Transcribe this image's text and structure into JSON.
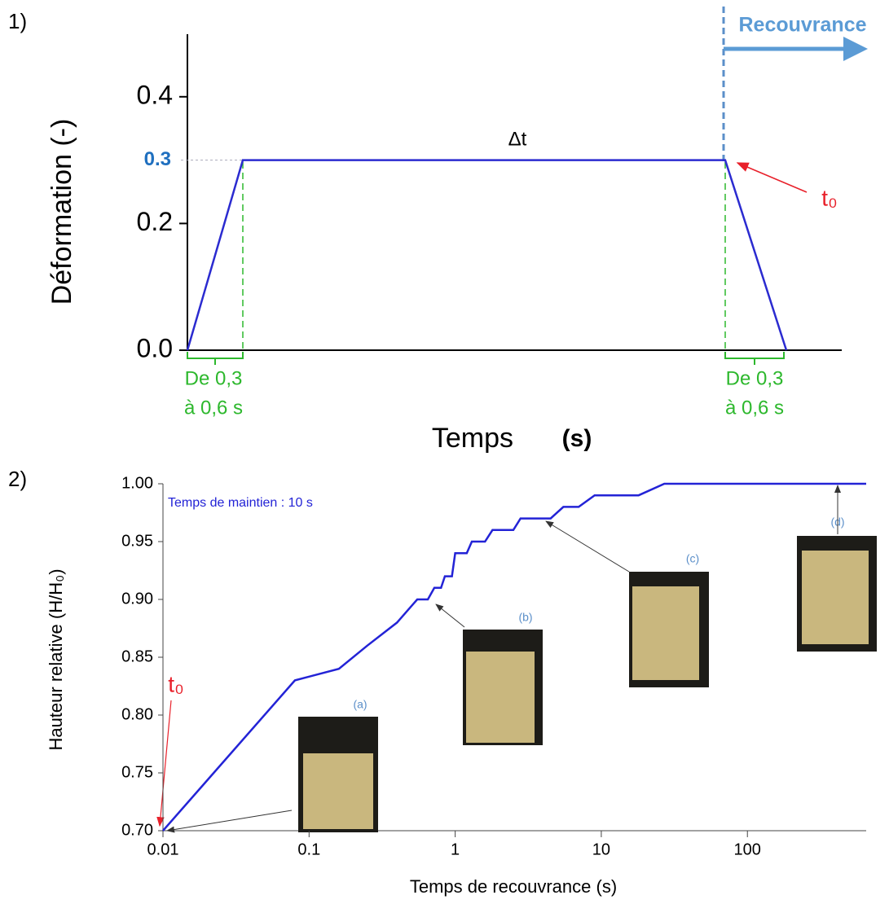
{
  "chart_data": [
    {
      "type": "line",
      "panel_label": "1)",
      "y_label": "Déformation (-)",
      "x_label": "Temps",
      "x_label_unit": "(s)",
      "categories": [
        null,
        null,
        null,
        null
      ],
      "values": [
        0,
        0.3,
        0.3,
        0
      ],
      "color": "#2b2bd0",
      "ylim": [
        0,
        0.5
      ],
      "yticks": [
        {
          "value": 0,
          "label": "0.0"
        },
        {
          "value": 0.2,
          "label": "0.2"
        },
        {
          "value": 0.4,
          "label": "0.4"
        }
      ],
      "level_label": {
        "value": 0.3,
        "label": "0.3"
      },
      "annotations": {
        "delta": "Δt",
        "t0": "t₀",
        "recovery": "Recouvrance",
        "ramp_left": [
          "De 0,3",
          "à 0,6 s"
        ],
        "ramp_right": [
          "De 0,3",
          "à 0,6 s"
        ]
      }
    },
    {
      "type": "line",
      "panel_label": "2)",
      "y_label": "Hauteur relative (H/H₀)",
      "x_label": "Temps de recouvrance (s)",
      "log_x": true,
      "x": [
        0.01,
        0.08,
        0.16,
        0.25,
        0.4,
        0.55,
        0.65,
        0.72,
        0.8,
        0.85,
        0.95,
        1.0,
        1.2,
        1.3,
        1.6,
        1.8,
        2.5,
        2.8,
        4.5,
        5.5,
        7,
        9,
        18,
        27,
        650
      ],
      "values": [
        0.7,
        0.83,
        0.84,
        0.86,
        0.88,
        0.9,
        0.9,
        0.91,
        0.91,
        0.92,
        0.92,
        0.94,
        0.94,
        0.95,
        0.95,
        0.96,
        0.96,
        0.97,
        0.97,
        0.98,
        0.98,
        0.99,
        0.99,
        1.0,
        1.0
      ],
      "color": "#2323d6",
      "xlim": [
        0.01,
        650
      ],
      "xticks": [
        0.01,
        0.1,
        1,
        10,
        100
      ],
      "ylim": [
        0.7,
        1.0
      ],
      "yticks": [
        {
          "value": 0.7,
          "label": "0.70"
        },
        {
          "value": 0.75,
          "label": "0.75"
        },
        {
          "value": 0.8,
          "label": "0.80"
        },
        {
          "value": 0.85,
          "label": "0.85"
        },
        {
          "value": 0.9,
          "label": "0.90"
        },
        {
          "value": 0.95,
          "label": "0.95"
        },
        {
          "value": 1.0,
          "label": "1.00"
        }
      ],
      "annotations": {
        "hold": "Temps de maintien : 10 s",
        "t0": "t₀",
        "photos": [
          "(a)",
          "(b)",
          "(c)",
          "(d)"
        ]
      }
    }
  ]
}
